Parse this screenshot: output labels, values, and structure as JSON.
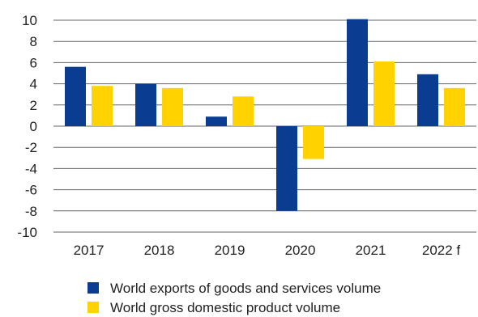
{
  "chart_data": {
    "type": "bar",
    "categories": [
      "2017",
      "2018",
      "2019",
      "2020",
      "2021",
      "2022 f"
    ],
    "series": [
      {
        "name": "World exports of goods and services volume",
        "color": "#0a3d91",
        "values": [
          5.6,
          4.0,
          0.9,
          -8.0,
          10.1,
          4.9
        ]
      },
      {
        "name": "World gross domestic product volume",
        "color": "#ffd200",
        "values": [
          3.8,
          3.6,
          2.8,
          -3.1,
          6.1,
          3.6
        ]
      }
    ],
    "yticks": [
      "10",
      "8",
      "6",
      "4",
      "2",
      "0",
      "-2",
      "-4",
      "-6",
      "-8",
      "-10"
    ],
    "ylim": [
      -10,
      10
    ],
    "grid": true,
    "legend_position": "bottom"
  }
}
